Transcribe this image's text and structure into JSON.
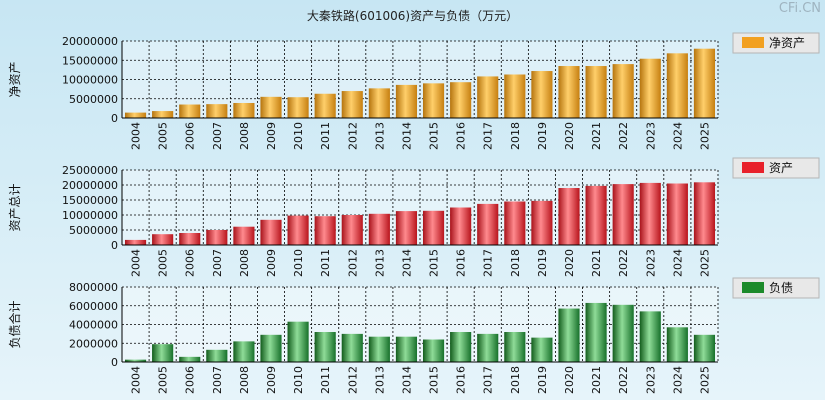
{
  "title": "大秦铁路(601006)资产与负债（万元）",
  "watermark": "CFi.CN",
  "colors": {
    "net_assets": "#f2a020",
    "assets": "#e8202a",
    "liabilities": "#1c8a2a",
    "grid": "#000000"
  },
  "chart_data": [
    {
      "type": "bar",
      "ylabel": "净资产",
      "legend": "净资产",
      "categories": [
        "2004",
        "2005",
        "2006",
        "2007",
        "2008",
        "2009",
        "2010",
        "2011",
        "2012",
        "2013",
        "2014",
        "2015",
        "2016",
        "2017",
        "2018",
        "2019",
        "2020",
        "2021",
        "2022",
        "2023",
        "2024",
        "2025"
      ],
      "values": [
        1400000,
        1800000,
        3500000,
        3600000,
        3900000,
        5500000,
        5400000,
        6300000,
        7000000,
        7700000,
        8600000,
        9000000,
        9300000,
        10800000,
        11300000,
        12200000,
        13500000,
        13500000,
        14000000,
        15400000,
        16800000,
        18000000
      ],
      "ylim": [
        0,
        20000000
      ],
      "ticks": [
        "0",
        "5000000",
        "10000000",
        "15000000",
        "20000000"
      ],
      "tick_values": [
        0,
        5000000,
        10000000,
        15000000,
        20000000
      ]
    },
    {
      "type": "bar",
      "ylabel": "资产总计",
      "legend": "资产",
      "categories": [
        "2004",
        "2005",
        "2006",
        "2007",
        "2008",
        "2009",
        "2010",
        "2011",
        "2012",
        "2013",
        "2014",
        "2015",
        "2016",
        "2017",
        "2018",
        "2019",
        "2020",
        "2021",
        "2022",
        "2023",
        "2024",
        "2025"
      ],
      "values": [
        1700000,
        3600000,
        4000000,
        5000000,
        6100000,
        8400000,
        9800000,
        9600000,
        10000000,
        10400000,
        11300000,
        11400000,
        12500000,
        13700000,
        14500000,
        14700000,
        19000000,
        19700000,
        20300000,
        20700000,
        20500000,
        20900000
      ],
      "ylim": [
        0,
        25000000
      ],
      "ticks": [
        "0",
        "5000000",
        "10000000",
        "15000000",
        "20000000",
        "25000000"
      ],
      "tick_values": [
        0,
        5000000,
        10000000,
        15000000,
        20000000,
        25000000
      ]
    },
    {
      "type": "bar",
      "ylabel": "负债合计",
      "legend": "负债",
      "categories": [
        "2004",
        "2005",
        "2006",
        "2007",
        "2008",
        "2009",
        "2010",
        "2011",
        "2012",
        "2013",
        "2014",
        "2015",
        "2016",
        "2017",
        "2018",
        "2019",
        "2020",
        "2021",
        "2022",
        "2023",
        "2024",
        "2025"
      ],
      "values": [
        250000,
        1900000,
        550000,
        1300000,
        2200000,
        2900000,
        4300000,
        3200000,
        3000000,
        2700000,
        2700000,
        2400000,
        3200000,
        3000000,
        3200000,
        2600000,
        5700000,
        6300000,
        6100000,
        5400000,
        3700000,
        2900000
      ],
      "ylim": [
        0,
        8000000
      ],
      "ticks": [
        "0",
        "2000000",
        "4000000",
        "6000000",
        "8000000"
      ],
      "tick_values": [
        0,
        2000000,
        4000000,
        6000000,
        8000000
      ]
    }
  ]
}
